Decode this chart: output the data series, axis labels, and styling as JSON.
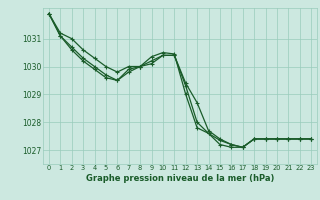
{
  "bg_color": "#cce8e0",
  "grid_color": "#99ccbb",
  "line_color": "#1a5c2a",
  "xlabel": "Graphe pression niveau de la mer (hPa)",
  "xlim": [
    -0.5,
    23.5
  ],
  "ylim": [
    1026.5,
    1032.1
  ],
  "yticks": [
    1027,
    1028,
    1029,
    1030,
    1031
  ],
  "xticks": [
    0,
    1,
    2,
    3,
    4,
    5,
    6,
    7,
    8,
    9,
    10,
    11,
    12,
    13,
    14,
    15,
    16,
    17,
    18,
    19,
    20,
    21,
    22,
    23
  ],
  "series": [
    [
      1031.9,
      1031.2,
      1031.0,
      1030.6,
      1030.3,
      1030.0,
      1029.8,
      1030.0,
      1030.0,
      1030.2,
      1030.4,
      1030.4,
      1029.3,
      1028.0,
      1027.6,
      1027.2,
      1027.1,
      1027.1,
      1027.4,
      1027.4,
      1027.4,
      1027.4,
      1027.4,
      1027.4
    ],
    [
      1031.9,
      1031.1,
      1030.7,
      1030.3,
      1030.0,
      1029.7,
      1029.5,
      1029.9,
      1030.0,
      1030.1,
      1030.4,
      1030.4,
      1029.4,
      1028.7,
      1027.7,
      1027.4,
      1027.2,
      1027.1,
      1027.4,
      1027.4,
      1027.4,
      1027.4,
      1027.4,
      1027.4
    ],
    [
      1031.9,
      1031.1,
      1030.6,
      1030.2,
      1029.9,
      1029.6,
      1029.5,
      1029.8,
      1030.0,
      1030.35,
      1030.5,
      1030.45,
      1029.0,
      1027.8,
      1027.6,
      1027.35,
      1027.2,
      1027.1,
      1027.4,
      1027.4,
      1027.4,
      1027.4,
      1027.4,
      1027.4
    ]
  ],
  "linewidth": 0.9,
  "markersize": 3.5
}
